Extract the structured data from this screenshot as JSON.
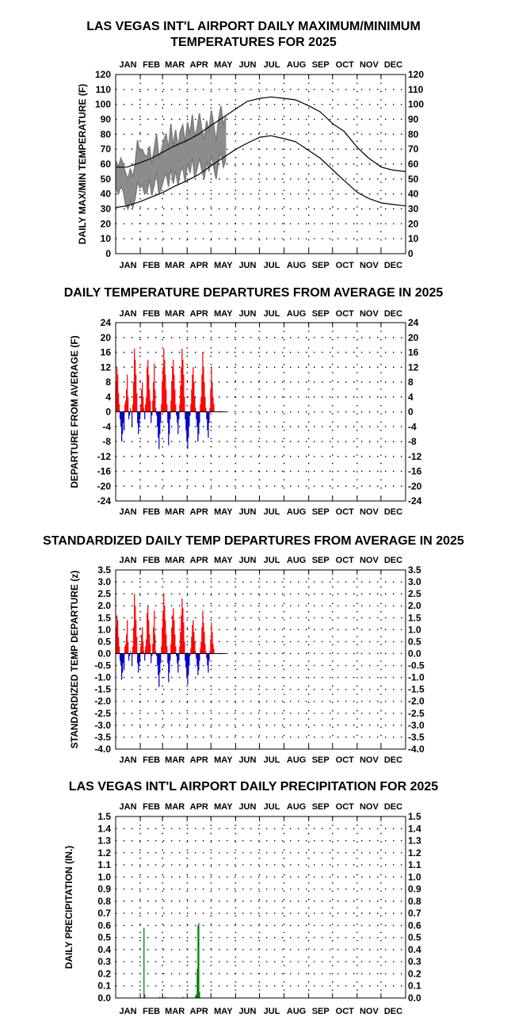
{
  "months": [
    "JAN",
    "FEB",
    "MAR",
    "APR",
    "MAY",
    "JUN",
    "JUL",
    "AUG",
    "SEP",
    "OCT",
    "NOV",
    "DEC"
  ],
  "colors": {
    "obs_range": "#8c8c8c",
    "normal_line": "#000000",
    "above": "#ff0000",
    "below": "#0000cc",
    "precip": "#008000",
    "grid_dot": "#000000"
  },
  "chart_data": [
    {
      "type": "area",
      "title_lines": [
        "LAS VEGAS INT'L AIRPORT DAILY MAXIMUM/MINIMUM",
        "TEMPERATURES FOR 2025"
      ],
      "ylabel": "DAILY MAX/MIN TEMPERATURE (F)",
      "ylim": [
        0,
        120
      ],
      "yticks": [
        "0",
        "10",
        "20",
        "30",
        "40",
        "50",
        "60",
        "70",
        "80",
        "90",
        "100",
        "110",
        "120"
      ],
      "grid": "dotted",
      "normal_high": {
        "day": [
          1,
          15,
          32,
          46,
          60,
          74,
          91,
          105,
          121,
          135,
          152,
          166,
          182,
          196,
          213,
          227,
          244,
          258,
          274,
          288,
          305,
          319,
          335,
          349,
          365
        ],
        "value": [
          58,
          58,
          61,
          64,
          68,
          72,
          76,
          80,
          86,
          91,
          97,
          102,
          104,
          105,
          104,
          103,
          99,
          95,
          87,
          82,
          71,
          64,
          58,
          56,
          55
        ]
      },
      "normal_low": {
        "day": [
          1,
          15,
          32,
          46,
          60,
          74,
          91,
          105,
          121,
          135,
          152,
          166,
          182,
          196,
          213,
          227,
          244,
          258,
          274,
          288,
          305,
          319,
          335,
          349,
          365
        ],
        "value": [
          31,
          32,
          35,
          38,
          41,
          45,
          49,
          53,
          59,
          64,
          70,
          74,
          78,
          79,
          77,
          75,
          69,
          64,
          56,
          49,
          41,
          37,
          34,
          33,
          32
        ]
      },
      "observed": {
        "day": [
          1,
          4,
          7,
          10,
          13,
          16,
          19,
          22,
          25,
          28,
          31,
          34,
          37,
          40,
          43,
          46,
          49,
          52,
          55,
          58,
          61,
          64,
          67,
          70,
          73,
          76,
          79,
          82,
          85,
          88,
          91,
          94,
          97,
          100,
          103,
          106,
          109,
          112,
          115,
          118,
          121,
          124,
          127,
          130,
          133,
          136,
          139
        ],
        "high": [
          62,
          58,
          64,
          60,
          54,
          50,
          57,
          51,
          60,
          76,
          68,
          70,
          66,
          65,
          72,
          60,
          70,
          80,
          64,
          69,
          76,
          80,
          70,
          87,
          72,
          83,
          71,
          82,
          86,
          74,
          88,
          80,
          93,
          78,
          84,
          94,
          83,
          76,
          89,
          82,
          96,
          86,
          75,
          90,
          99,
          86,
          92
        ],
        "low": [
          44,
          40,
          45,
          42,
          33,
          30,
          35,
          31,
          37,
          48,
          44,
          46,
          40,
          41,
          50,
          39,
          46,
          55,
          40,
          44,
          50,
          54,
          45,
          58,
          47,
          56,
          46,
          55,
          58,
          48,
          61,
          54,
          65,
          51,
          57,
          64,
          56,
          50,
          62,
          55,
          66,
          58,
          50,
          62,
          68,
          58,
          62
        ]
      }
    },
    {
      "type": "bar",
      "title": "DAILY TEMPERATURE DEPARTURES FROM AVERAGE IN 2025",
      "ylabel": "DEPARTURE FROM AVERAGE (F)",
      "ylim": [
        -24,
        24
      ],
      "yticks": [
        "-24",
        "-20",
        "-16",
        "-12",
        "-8",
        "-4",
        "0",
        "4",
        "8",
        "12",
        "16",
        "20",
        "24"
      ],
      "grid": "dotted",
      "start_day": 1,
      "values": [
        8,
        12,
        10,
        5,
        2,
        -2,
        -4,
        -8,
        -6,
        -3,
        -5,
        2,
        3,
        6,
        10,
        4,
        -2,
        -1,
        1,
        0,
        -4,
        2,
        8,
        17,
        14,
        10,
        5,
        -3,
        -6,
        -4,
        -2,
        2,
        6,
        8,
        4,
        1,
        -2,
        2,
        4,
        12,
        14,
        10,
        6,
        3,
        -3,
        -1,
        3,
        8,
        13,
        6,
        1,
        -1,
        -4,
        -7,
        -10,
        -6,
        -3,
        2,
        8,
        12,
        17,
        14,
        10,
        6,
        2,
        -3,
        -9,
        -6,
        -2,
        3,
        8,
        12,
        14,
        10,
        6,
        2,
        -1,
        -3,
        -6,
        -2,
        2,
        7,
        12,
        17,
        14,
        10,
        4,
        -2,
        -5,
        -8,
        -10,
        -7,
        -4,
        -1,
        2,
        6,
        10,
        12,
        8,
        4,
        1,
        -2,
        -4,
        -8,
        -6,
        -3,
        2,
        4,
        10,
        16,
        12,
        8,
        4,
        1,
        -2,
        -5,
        -7,
        -3,
        1,
        6,
        12,
        8,
        4,
        2
      ]
    },
    {
      "type": "bar",
      "title": "STANDARDIZED DAILY TEMP DEPARTURES FROM AVERAGE IN 2025",
      "ylabel": "STANDARDIZED TEMP DEPARTURE (z)",
      "ylim": [
        -4.0,
        3.5
      ],
      "yticks": [
        "-4.0",
        "-3.5",
        "-3.0",
        "-2.5",
        "-2.0",
        "-1.5",
        "-1.0",
        "-0.5",
        "0.0",
        "0.5",
        "1.0",
        "1.5",
        "2.0",
        "2.5",
        "3.0",
        "3.5"
      ],
      "grid": "dotted",
      "start_day": 1,
      "values": [
        1.1,
        1.6,
        1.4,
        0.7,
        0.3,
        -0.3,
        -0.5,
        -1.1,
        -0.8,
        -0.4,
        -0.7,
        0.3,
        0.4,
        0.8,
        1.4,
        0.5,
        -0.3,
        -0.1,
        0.1,
        0.0,
        -0.5,
        0.3,
        1.1,
        2.5,
        2.0,
        1.4,
        0.7,
        -0.4,
        -0.8,
        -0.5,
        -0.3,
        0.3,
        0.8,
        1.1,
        0.5,
        0.1,
        -0.3,
        0.3,
        0.6,
        1.7,
        2.0,
        1.4,
        0.8,
        0.4,
        -0.4,
        -0.1,
        0.4,
        1.1,
        1.8,
        0.8,
        0.1,
        -0.1,
        -0.5,
        -0.9,
        -1.4,
        -0.8,
        -0.4,
        0.3,
        1.1,
        1.7,
        2.5,
        2.0,
        1.4,
        0.8,
        0.3,
        -0.4,
        -1.2,
        -0.8,
        -0.3,
        0.4,
        1.1,
        1.6,
        1.9,
        1.4,
        0.8,
        0.3,
        -0.1,
        -0.4,
        -0.8,
        -0.3,
        0.3,
        0.9,
        1.6,
        2.3,
        1.9,
        1.3,
        0.5,
        -0.3,
        -0.6,
        -1.0,
        -1.3,
        -0.9,
        -0.5,
        -0.1,
        0.2,
        0.7,
        1.2,
        1.4,
        0.9,
        0.5,
        0.1,
        -0.2,
        -0.5,
        -0.9,
        -0.7,
        -0.3,
        0.2,
        0.5,
        1.1,
        1.8,
        1.3,
        0.9,
        0.4,
        0.1,
        -0.2,
        -0.5,
        -0.8,
        -0.3,
        0.1,
        0.6,
        1.3,
        0.9,
        0.4,
        0.2
      ]
    },
    {
      "type": "bar",
      "title": "LAS VEGAS INT'L AIRPORT DAILY PRECIPITATION FOR 2025",
      "ylabel": "DAILY PRECIPITATION (IN.)",
      "ylim": [
        0.0,
        1.5
      ],
      "yticks": [
        "0.0",
        "0.1",
        "0.2",
        "0.3",
        "0.4",
        "0.5",
        "0.6",
        "0.7",
        "0.8",
        "0.9",
        "1.0",
        "1.1",
        "1.2",
        "1.3",
        "1.4",
        "1.5"
      ],
      "grid": "dotted",
      "points": [
        {
          "day": 36,
          "value": 0.58
        },
        {
          "day": 37,
          "value": 0.03
        },
        {
          "day": 56,
          "value": 0.01
        },
        {
          "day": 60,
          "value": 0.01
        },
        {
          "day": 63,
          "value": 0.01
        },
        {
          "day": 85,
          "value": 0.01
        },
        {
          "day": 101,
          "value": 0.02
        },
        {
          "day": 102,
          "value": 0.03
        },
        {
          "day": 103,
          "value": 0.24
        },
        {
          "day": 104,
          "value": 0.6
        },
        {
          "day": 105,
          "value": 0.62
        },
        {
          "day": 106,
          "value": 0.05
        }
      ]
    }
  ]
}
